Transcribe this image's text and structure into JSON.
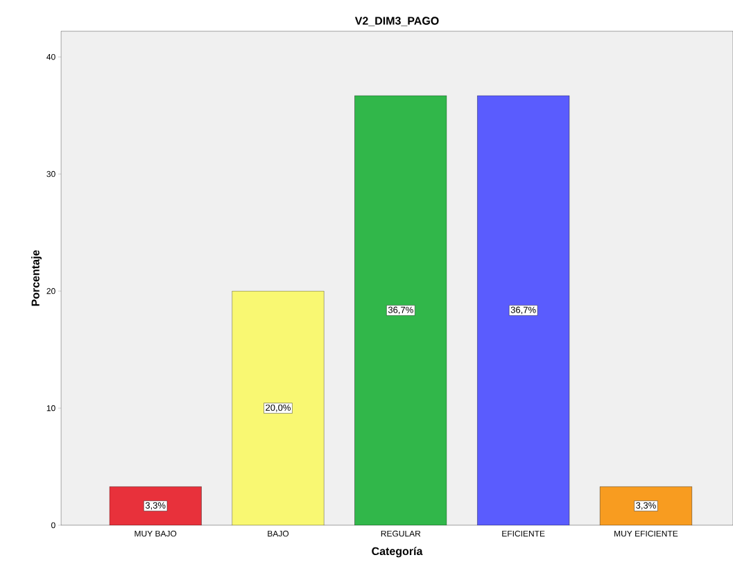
{
  "chart_data": {
    "type": "bar",
    "title": "V2_DIM3_PAGO",
    "xlabel": "Categoría",
    "ylabel": "Porcentaje",
    "categories": [
      "MUY BAJO",
      "BAJO",
      "REGULAR",
      "EFICIENTE",
      "MUY EFICIENTE"
    ],
    "values": [
      3.3,
      20.0,
      36.7,
      36.7,
      3.3
    ],
    "colors": [
      "#e8313b",
      "#f9f872",
      "#31b74a",
      "#5a5cfe",
      "#f89c20"
    ],
    "value_labels": [
      "3,3%",
      "20,0%",
      "36,7%",
      "36,7%",
      "3,3%"
    ],
    "ylim": [
      0,
      42.2
    ],
    "yticks": [
      0,
      10,
      20,
      30,
      40
    ]
  }
}
